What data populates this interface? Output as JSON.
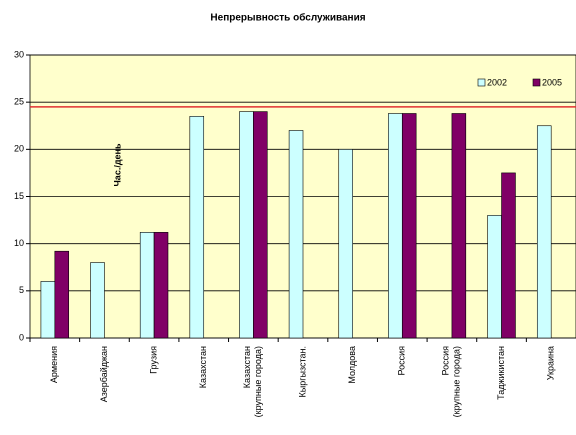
{
  "chart_data": {
    "type": "bar",
    "title": "Непрерывность обслуживания",
    "ylabel": "Час./день",
    "categories": [
      "Армения",
      "Азербайджан",
      "Грузия",
      "Казахстан",
      "Казахстан (крупные города)",
      "Кыргызстан.",
      "Молдова",
      "Россия",
      "Россия (крупные города)",
      "Таджикистан",
      "Украина"
    ],
    "series": [
      {
        "name": "2002",
        "color": "#ccffff",
        "values": [
          6,
          8,
          11.2,
          23.5,
          24,
          22,
          20,
          23.8,
          null,
          13,
          22.5
        ]
      },
      {
        "name": "2005",
        "color": "#800066",
        "values": [
          9.2,
          null,
          11.2,
          null,
          24,
          null,
          null,
          23.8,
          23.8,
          17.5,
          null
        ]
      }
    ],
    "reference_line": {
      "value": 24.5,
      "color": "#e03030"
    },
    "ylim": [
      0,
      30
    ],
    "yticks": [
      0,
      5,
      10,
      15,
      20,
      25,
      30
    ],
    "grid": true,
    "legend": "upper right",
    "background": "#ffffcc"
  }
}
